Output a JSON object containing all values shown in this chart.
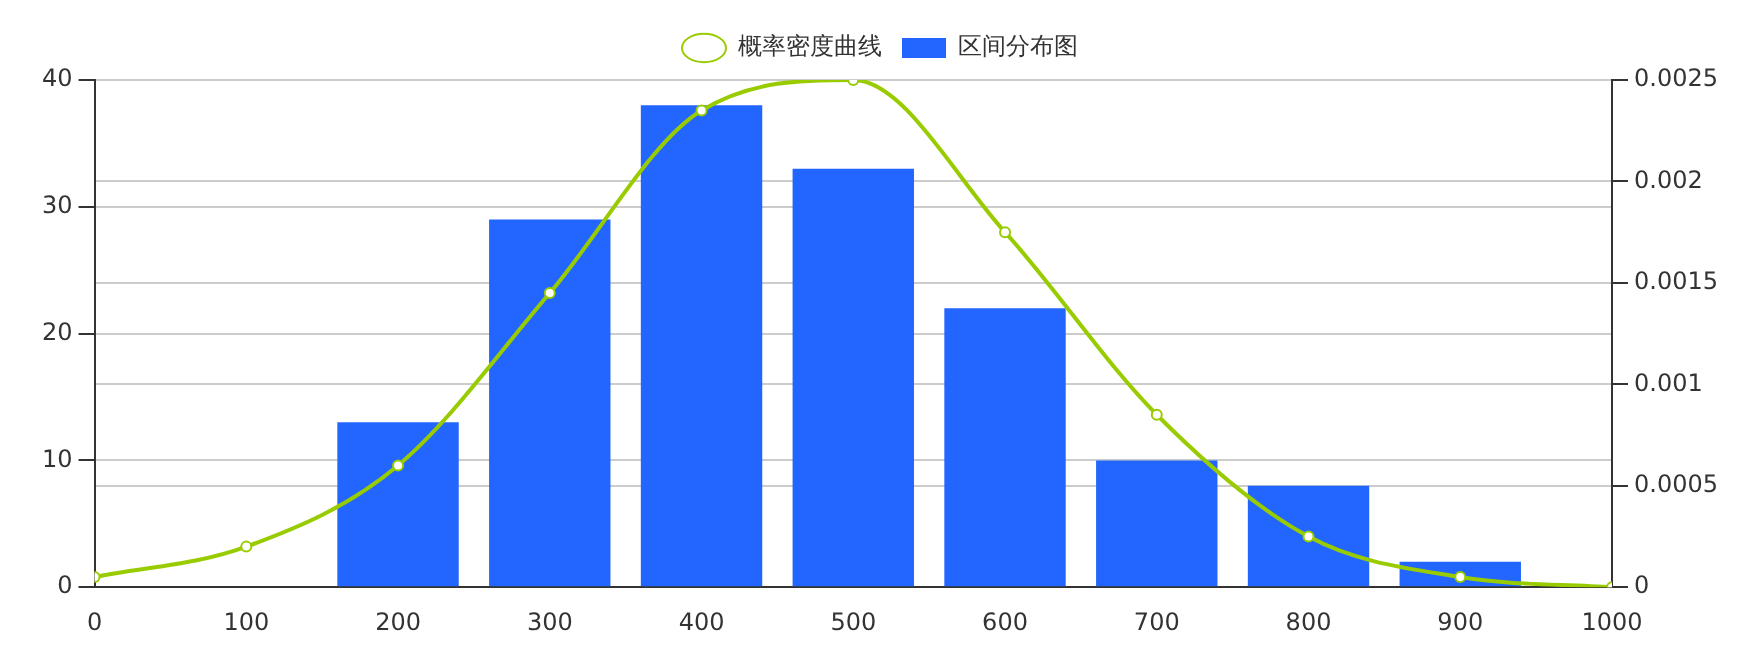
{
  "chart_data": {
    "type": "bar",
    "xlim": [
      0,
      1000
    ],
    "xticks": [
      0,
      100,
      200,
      300,
      400,
      500,
      600,
      700,
      800,
      900,
      1000
    ],
    "ylim": [
      0,
      40
    ],
    "yticks": [
      0,
      10,
      20,
      30,
      40
    ],
    "y2lim": [
      0,
      0.0025
    ],
    "y2ticks": [
      0,
      0.0005,
      0.001,
      0.0015,
      0.002,
      0.0025
    ],
    "grid": "y",
    "legend": "top",
    "marker": "circle",
    "series": [
      {
        "name": "概率密度曲线",
        "type": "line",
        "axis": "y2",
        "color": "#99cc00",
        "x": [
          0,
          100,
          200,
          300,
          400,
          500,
          600,
          700,
          800,
          900,
          1000
        ],
        "values": [
          5e-05,
          0.0002,
          0.0006,
          0.00145,
          0.00235,
          0.0025,
          0.00175,
          0.00085,
          0.00025,
          5e-05,
          0
        ]
      },
      {
        "name": "区间分布图",
        "color": "#2266ff",
        "x": [
          200,
          300,
          400,
          500,
          600,
          700,
          800,
          900
        ],
        "values": [
          13,
          29,
          38,
          33,
          22,
          10,
          8,
          2
        ]
      }
    ]
  }
}
